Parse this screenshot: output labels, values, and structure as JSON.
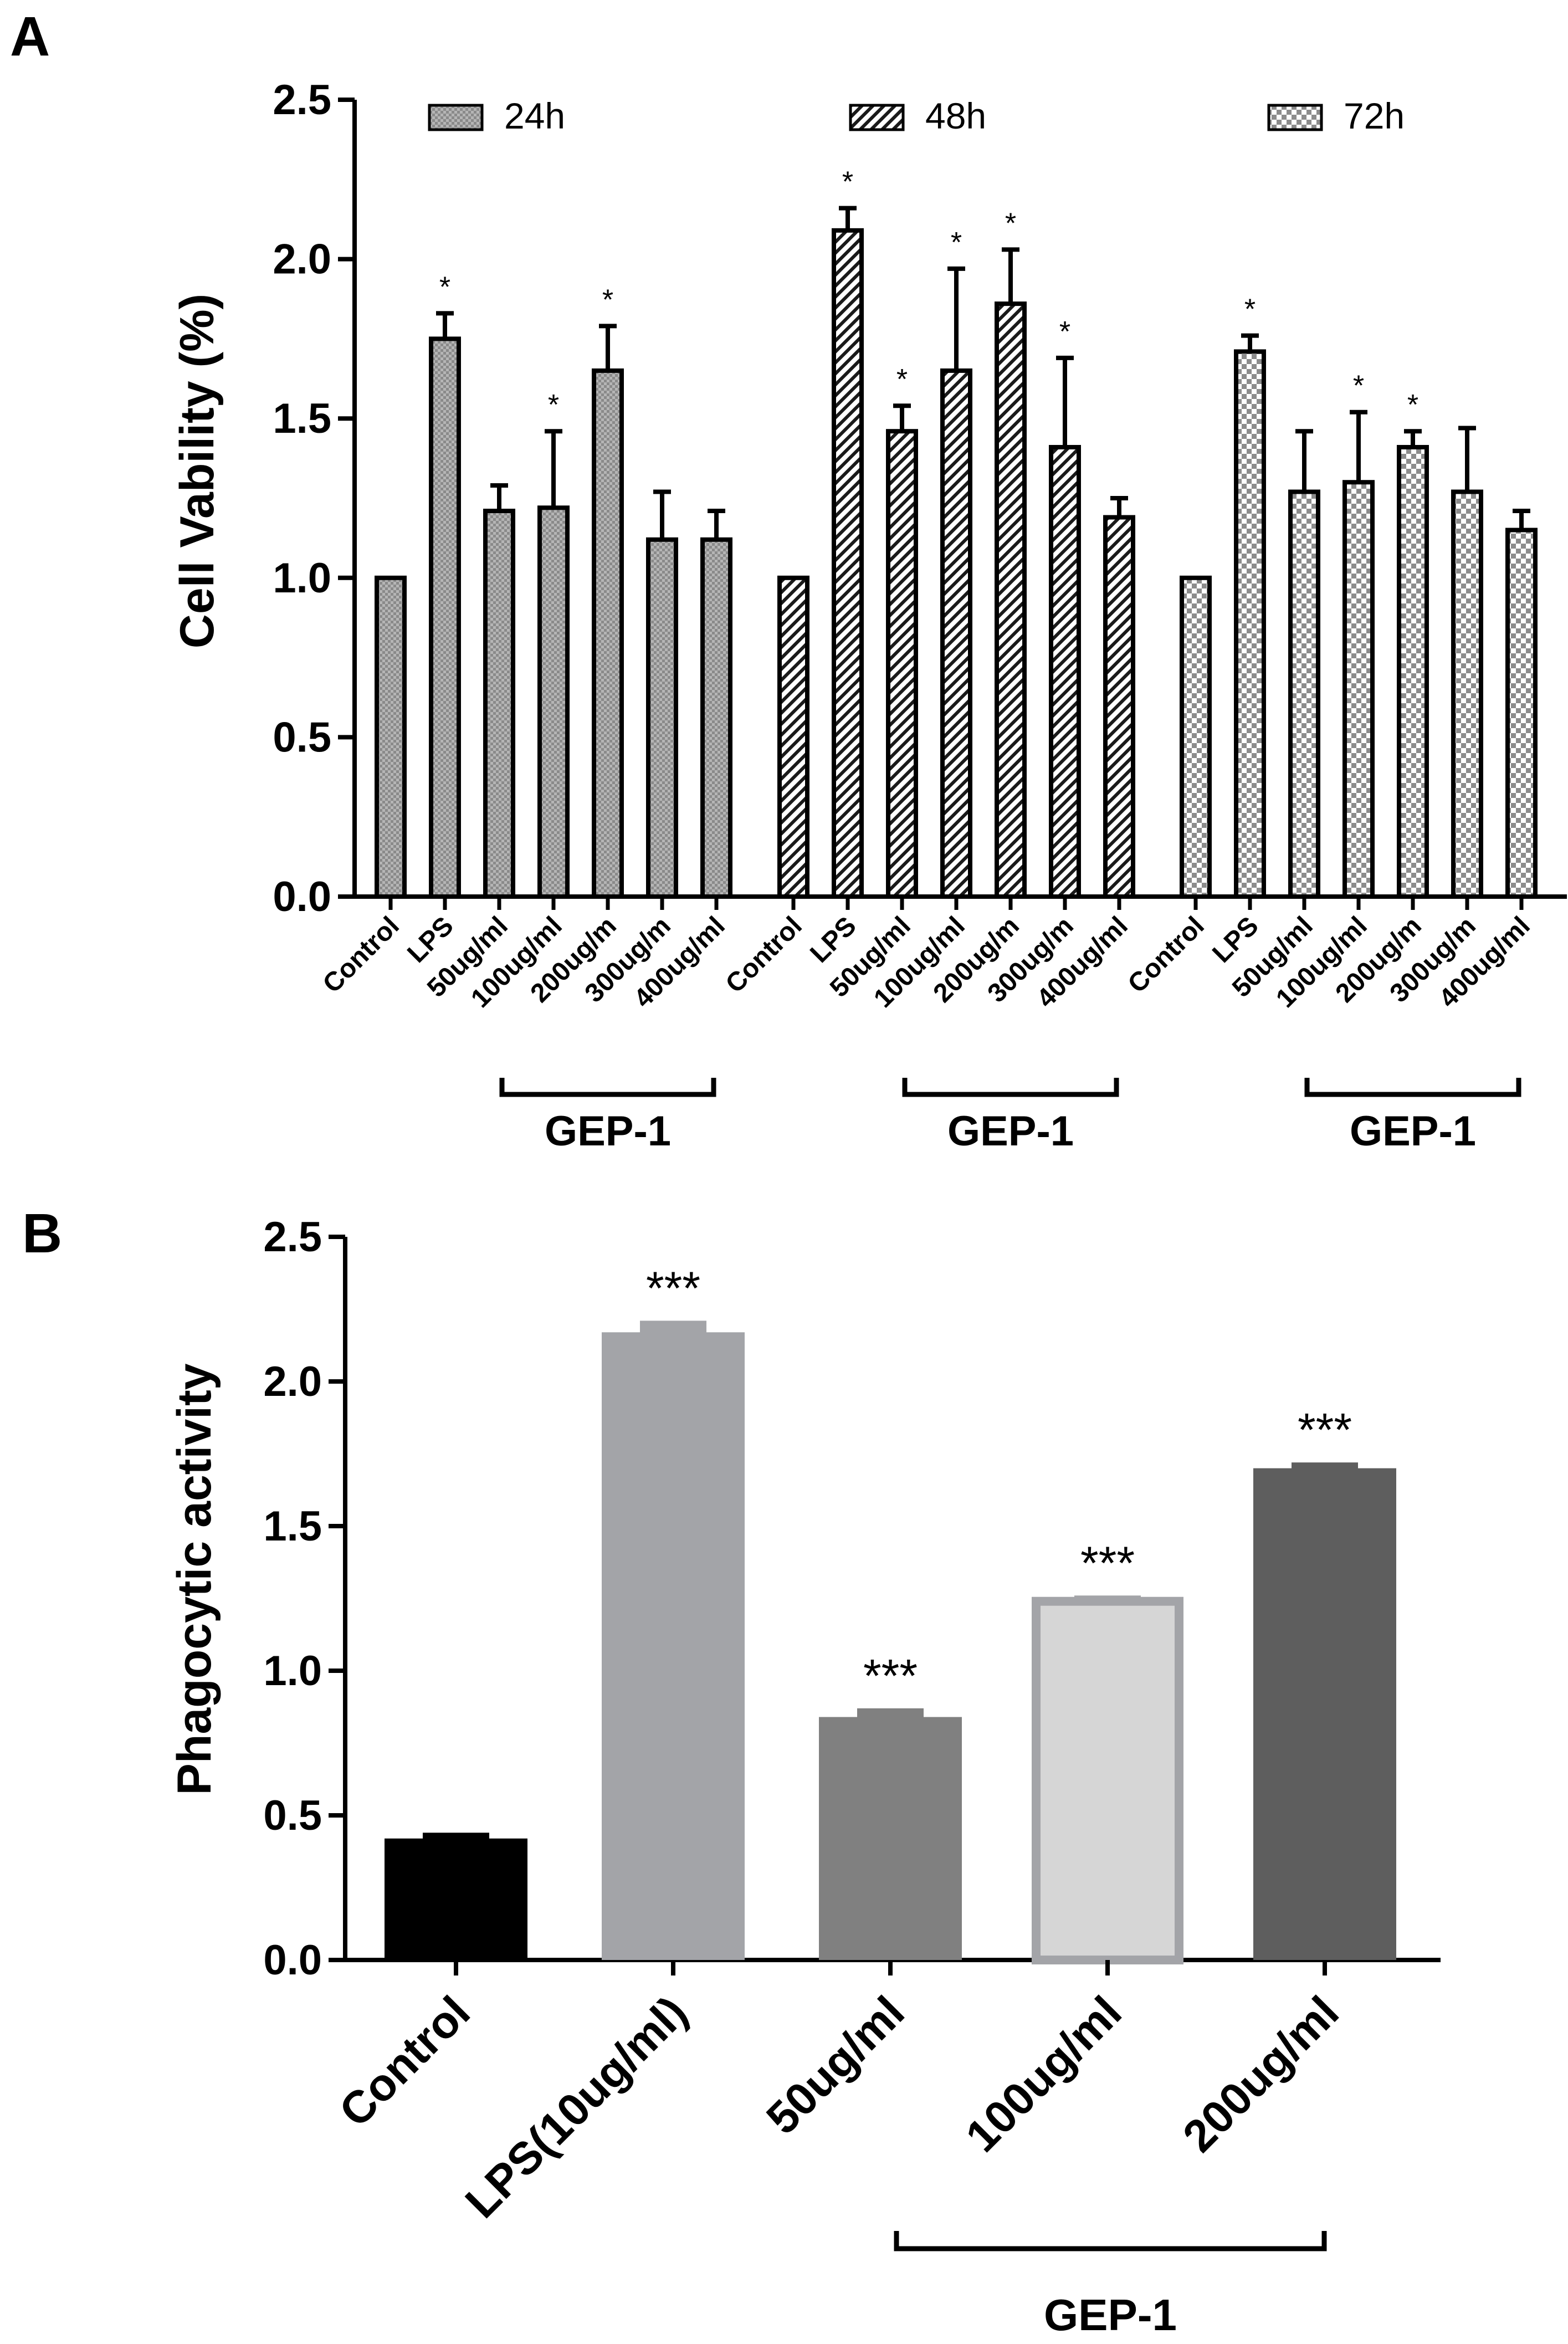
{
  "panels": {
    "a_label": "A",
    "b_label": "B"
  },
  "chart_data": [
    {
      "panel": "A",
      "type": "bar",
      "ylabel": "Cell Vability (%)",
      "ylim": [
        0,
        2.5
      ],
      "yticks": [
        "0.0",
        "0.5",
        "1.0",
        "1.5",
        "2.0",
        "2.5"
      ],
      "categories": [
        "Control",
        "LPS",
        "50ug/ml",
        "100ug/ml",
        "200ug/m",
        "300ug/m",
        "400ug/ml"
      ],
      "legend_position": "top",
      "series": [
        {
          "name": "24h",
          "pattern": "crosshatch",
          "values": [
            1.0,
            1.75,
            1.21,
            1.22,
            1.65,
            1.12,
            1.12
          ],
          "errors": [
            0.0,
            0.08,
            0.08,
            0.24,
            0.14,
            0.15,
            0.09
          ],
          "significance": [
            "",
            "*",
            "",
            "*",
            "*",
            "",
            ""
          ],
          "group_label": "GEP-1"
        },
        {
          "name": "48h",
          "pattern": "diagonal",
          "values": [
            1.0,
            2.09,
            1.46,
            1.65,
            1.86,
            1.41,
            1.19
          ],
          "errors": [
            0.0,
            0.07,
            0.08,
            0.32,
            0.17,
            0.28,
            0.06
          ],
          "significance": [
            "",
            "*",
            "*",
            "*",
            "*",
            "*",
            ""
          ],
          "group_label": "GEP-1"
        },
        {
          "name": "72h",
          "pattern": "checker",
          "values": [
            1.0,
            1.71,
            1.27,
            1.3,
            1.41,
            1.27,
            1.15
          ],
          "errors": [
            0.0,
            0.05,
            0.19,
            0.22,
            0.05,
            0.2,
            0.06
          ],
          "significance": [
            "",
            "*",
            "",
            "*",
            "*",
            "",
            ""
          ],
          "group_label": "GEP-1"
        }
      ]
    },
    {
      "panel": "B",
      "type": "bar",
      "ylabel": "Phagocytic activity",
      "ylim": [
        0,
        2.5
      ],
      "yticks": [
        "0.0",
        "0.5",
        "1.0",
        "1.5",
        "2.0",
        "2.5"
      ],
      "categories": [
        "Control",
        "LPS(10ug/ml)",
        "50ug/ml",
        "100ug/ml",
        "200ug/ml"
      ],
      "values": [
        0.42,
        2.17,
        0.84,
        1.24,
        1.7
      ],
      "errors": [
        0.02,
        0.04,
        0.03,
        0.02,
        0.02
      ],
      "significance": [
        "",
        "***",
        "***",
        "***",
        "***"
      ],
      "colors": [
        "#000000",
        "#a3a4a8",
        "#808080",
        "#d6d6d6",
        "#5e5e5e"
      ],
      "group_label": "GEP-1"
    }
  ]
}
